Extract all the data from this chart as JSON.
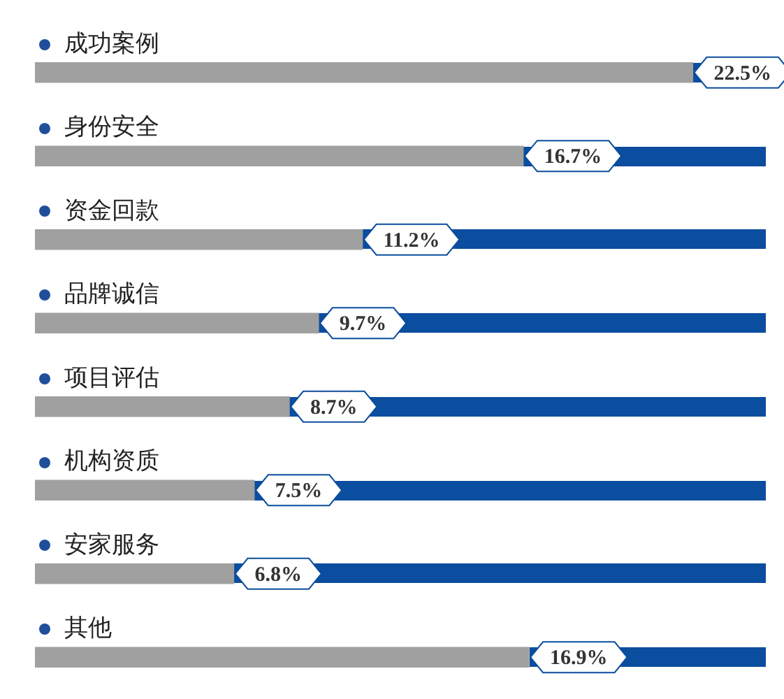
{
  "chart_data": {
    "type": "bar",
    "orientation": "horizontal",
    "categories": [
      "成功案例",
      "身份安全",
      "资金回款",
      "品牌诚信",
      "项目评估",
      "机构资质",
      "安家服务",
      "其他"
    ],
    "values": [
      22.5,
      16.7,
      11.2,
      9.7,
      8.7,
      7.5,
      6.8,
      16.9
    ],
    "value_labels": [
      "22.5%",
      "16.7%",
      "11.2%",
      "9.7%",
      "8.7%",
      "7.5%",
      "6.8%",
      "16.9%"
    ],
    "color": "#a0a0a0",
    "tick_labels": false,
    "legend": false
  }
}
